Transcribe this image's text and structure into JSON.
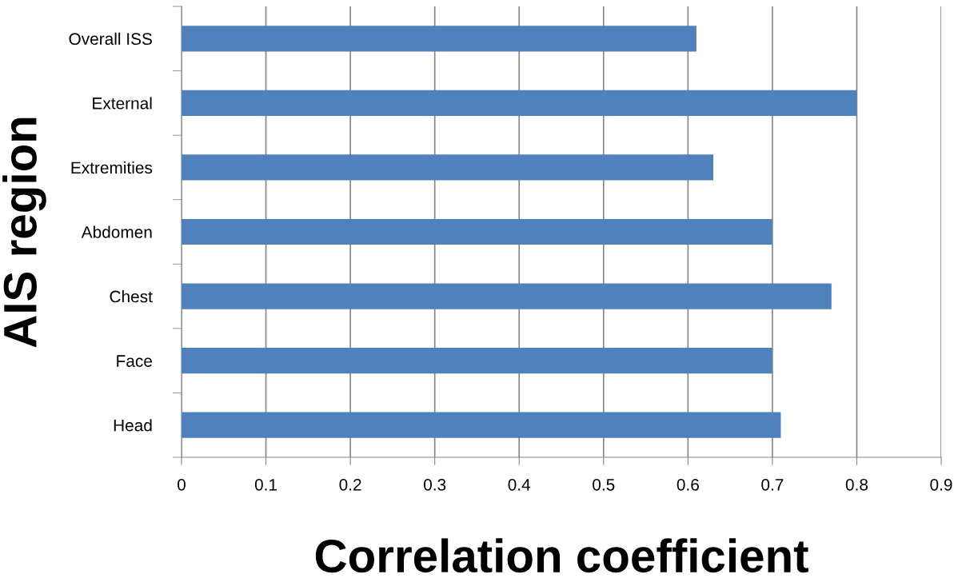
{
  "chart_data": {
    "type": "bar",
    "orientation": "horizontal",
    "categories": [
      "Overall ISS",
      "External",
      "Extremities",
      "Abdomen",
      "Chest",
      "Face",
      "Head"
    ],
    "values": [
      0.61,
      0.8,
      0.63,
      0.7,
      0.77,
      0.7,
      0.71
    ],
    "color": "#4f81bd",
    "xlabel": "Correlation coefficient",
    "ylabel": "AIS region",
    "xlim": [
      0,
      0.9
    ],
    "xticks": [
      0,
      0.1,
      0.2,
      0.3,
      0.4,
      0.5,
      0.6,
      0.7,
      0.8,
      0.9
    ],
    "grid": "x",
    "legend": false
  }
}
